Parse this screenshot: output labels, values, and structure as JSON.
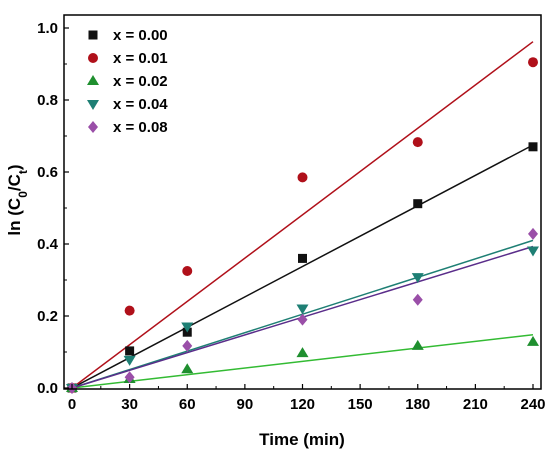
{
  "chart_data": {
    "type": "scatter",
    "xlabel": "Time (min)",
    "ylabel_parts": [
      "ln (C",
      "0",
      "/C",
      "t",
      ")"
    ],
    "xlim": [
      0,
      240
    ],
    "ylim": [
      0,
      1.0
    ],
    "x_ticks": [
      0,
      30,
      60,
      90,
      120,
      150,
      180,
      210,
      240
    ],
    "x_tick_labels": [
      "0",
      "30",
      "60",
      "90",
      "120",
      "150",
      "180",
      "210",
      "240"
    ],
    "y_ticks": [
      0,
      0.2,
      0.4,
      0.6,
      0.8,
      1.0
    ],
    "y_tick_labels": [
      "0.0",
      "0.2",
      "0.4",
      "0.6",
      "0.8",
      "1.0"
    ],
    "legend_position": "top-left",
    "grid": false,
    "x": [
      0,
      30,
      60,
      120,
      180,
      240
    ],
    "series": [
      {
        "name": "x = 0.00",
        "marker": "square",
        "color": "#111111",
        "line_color": "#111111",
        "values": [
          0,
          0.103,
          0.155,
          0.36,
          0.512,
          0.67
        ],
        "fit_end": 0.675
      },
      {
        "name": "x = 0.01",
        "marker": "circle",
        "color": "#b0101a",
        "line_color": "#b0101a",
        "values": [
          0,
          0.215,
          0.325,
          0.585,
          0.683,
          0.905
        ],
        "fit_end": 0.962
      },
      {
        "name": "x = 0.02",
        "marker": "triangle-up",
        "color": "#1f8f2f",
        "line_color": "#33bb33",
        "values": [
          0,
          0.025,
          0.052,
          0.097,
          0.117,
          0.128
        ],
        "fit_end": 0.148
      },
      {
        "name": "x = 0.04",
        "marker": "triangle-down",
        "color": "#1e7f74",
        "line_color": "#1e7f74",
        "values": [
          0,
          0.078,
          0.171,
          0.221,
          0.308,
          0.382
        ],
        "fit_end": 0.41
      },
      {
        "name": "x = 0.08",
        "marker": "diamond",
        "color": "#9a4fa8",
        "line_color": "#5a2d8a",
        "values": [
          0,
          0.03,
          0.117,
          0.19,
          0.245,
          0.428
        ],
        "fit_end": 0.393
      }
    ]
  }
}
